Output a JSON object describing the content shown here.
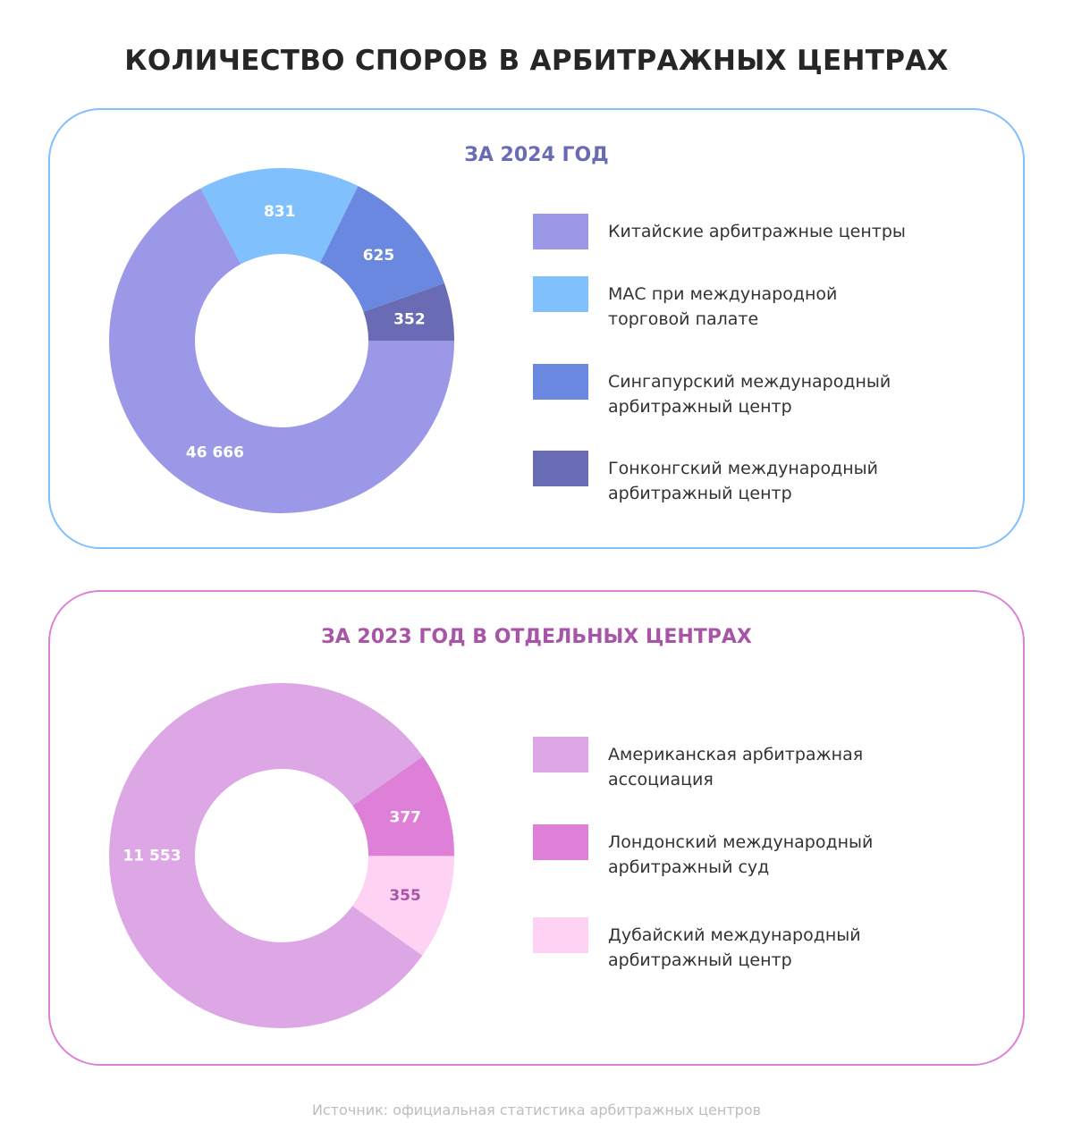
{
  "title": "КОЛИЧЕСТВО СПОРОВ В АРБИТРАЖНЫХ ЦЕНТРАХ",
  "source": "Источник: официальная статистика арбитражных центров",
  "chart_data": [
    {
      "type": "pie",
      "title": "ЗА 2024 ГОД",
      "legend_placement": "right",
      "note": "slices drawn with display shares (not proportional to values)",
      "slices": [
        {
          "name": "Китайские арбитражные центры",
          "value": 46666,
          "label": "46 666",
          "display_share": 67.2,
          "color": "#9C98E8",
          "label_color": "#ffffff"
        },
        {
          "name": "МАС при международной торговой палате",
          "value": 831,
          "label": "831",
          "display_share": 15.1,
          "color": "#80C0FD",
          "label_color": "#ffffff"
        },
        {
          "name": "Сингапурский международный арбитражный центр",
          "value": 625,
          "label": "625",
          "display_share": 12.3,
          "color": "#6A88E0",
          "label_color": "#ffffff"
        },
        {
          "name": "Гонконгский международный арбитражный центр",
          "value": 352,
          "label": "352",
          "display_share": 5.4,
          "color": "#6A6BB5",
          "label_color": "#ffffff"
        }
      ]
    },
    {
      "type": "pie",
      "title": "ЗА 2023 ГОД В ОТДЕЛЬНЫХ ЦЕНТРАХ",
      "legend_placement": "right",
      "note": "slices drawn with display shares (not proportional to values)",
      "slices": [
        {
          "name": "Американская арбитражная ассоциация",
          "value": 11553,
          "label": "11 553",
          "display_share": 80.4,
          "color": "#DDA6E5",
          "label_color": "#ffffff"
        },
        {
          "name": "Лондонский международный арбитражный суд",
          "value": 377,
          "label": "377",
          "display_share": 9.8,
          "color": "#DF80D8",
          "label_color": "#ffffff"
        },
        {
          "name": "Дубайский международный арбитражный центр",
          "value": 355,
          "label": "355",
          "display_share": 9.8,
          "color": "#FED2F2",
          "label_color": "#A855A8"
        }
      ]
    }
  ]
}
